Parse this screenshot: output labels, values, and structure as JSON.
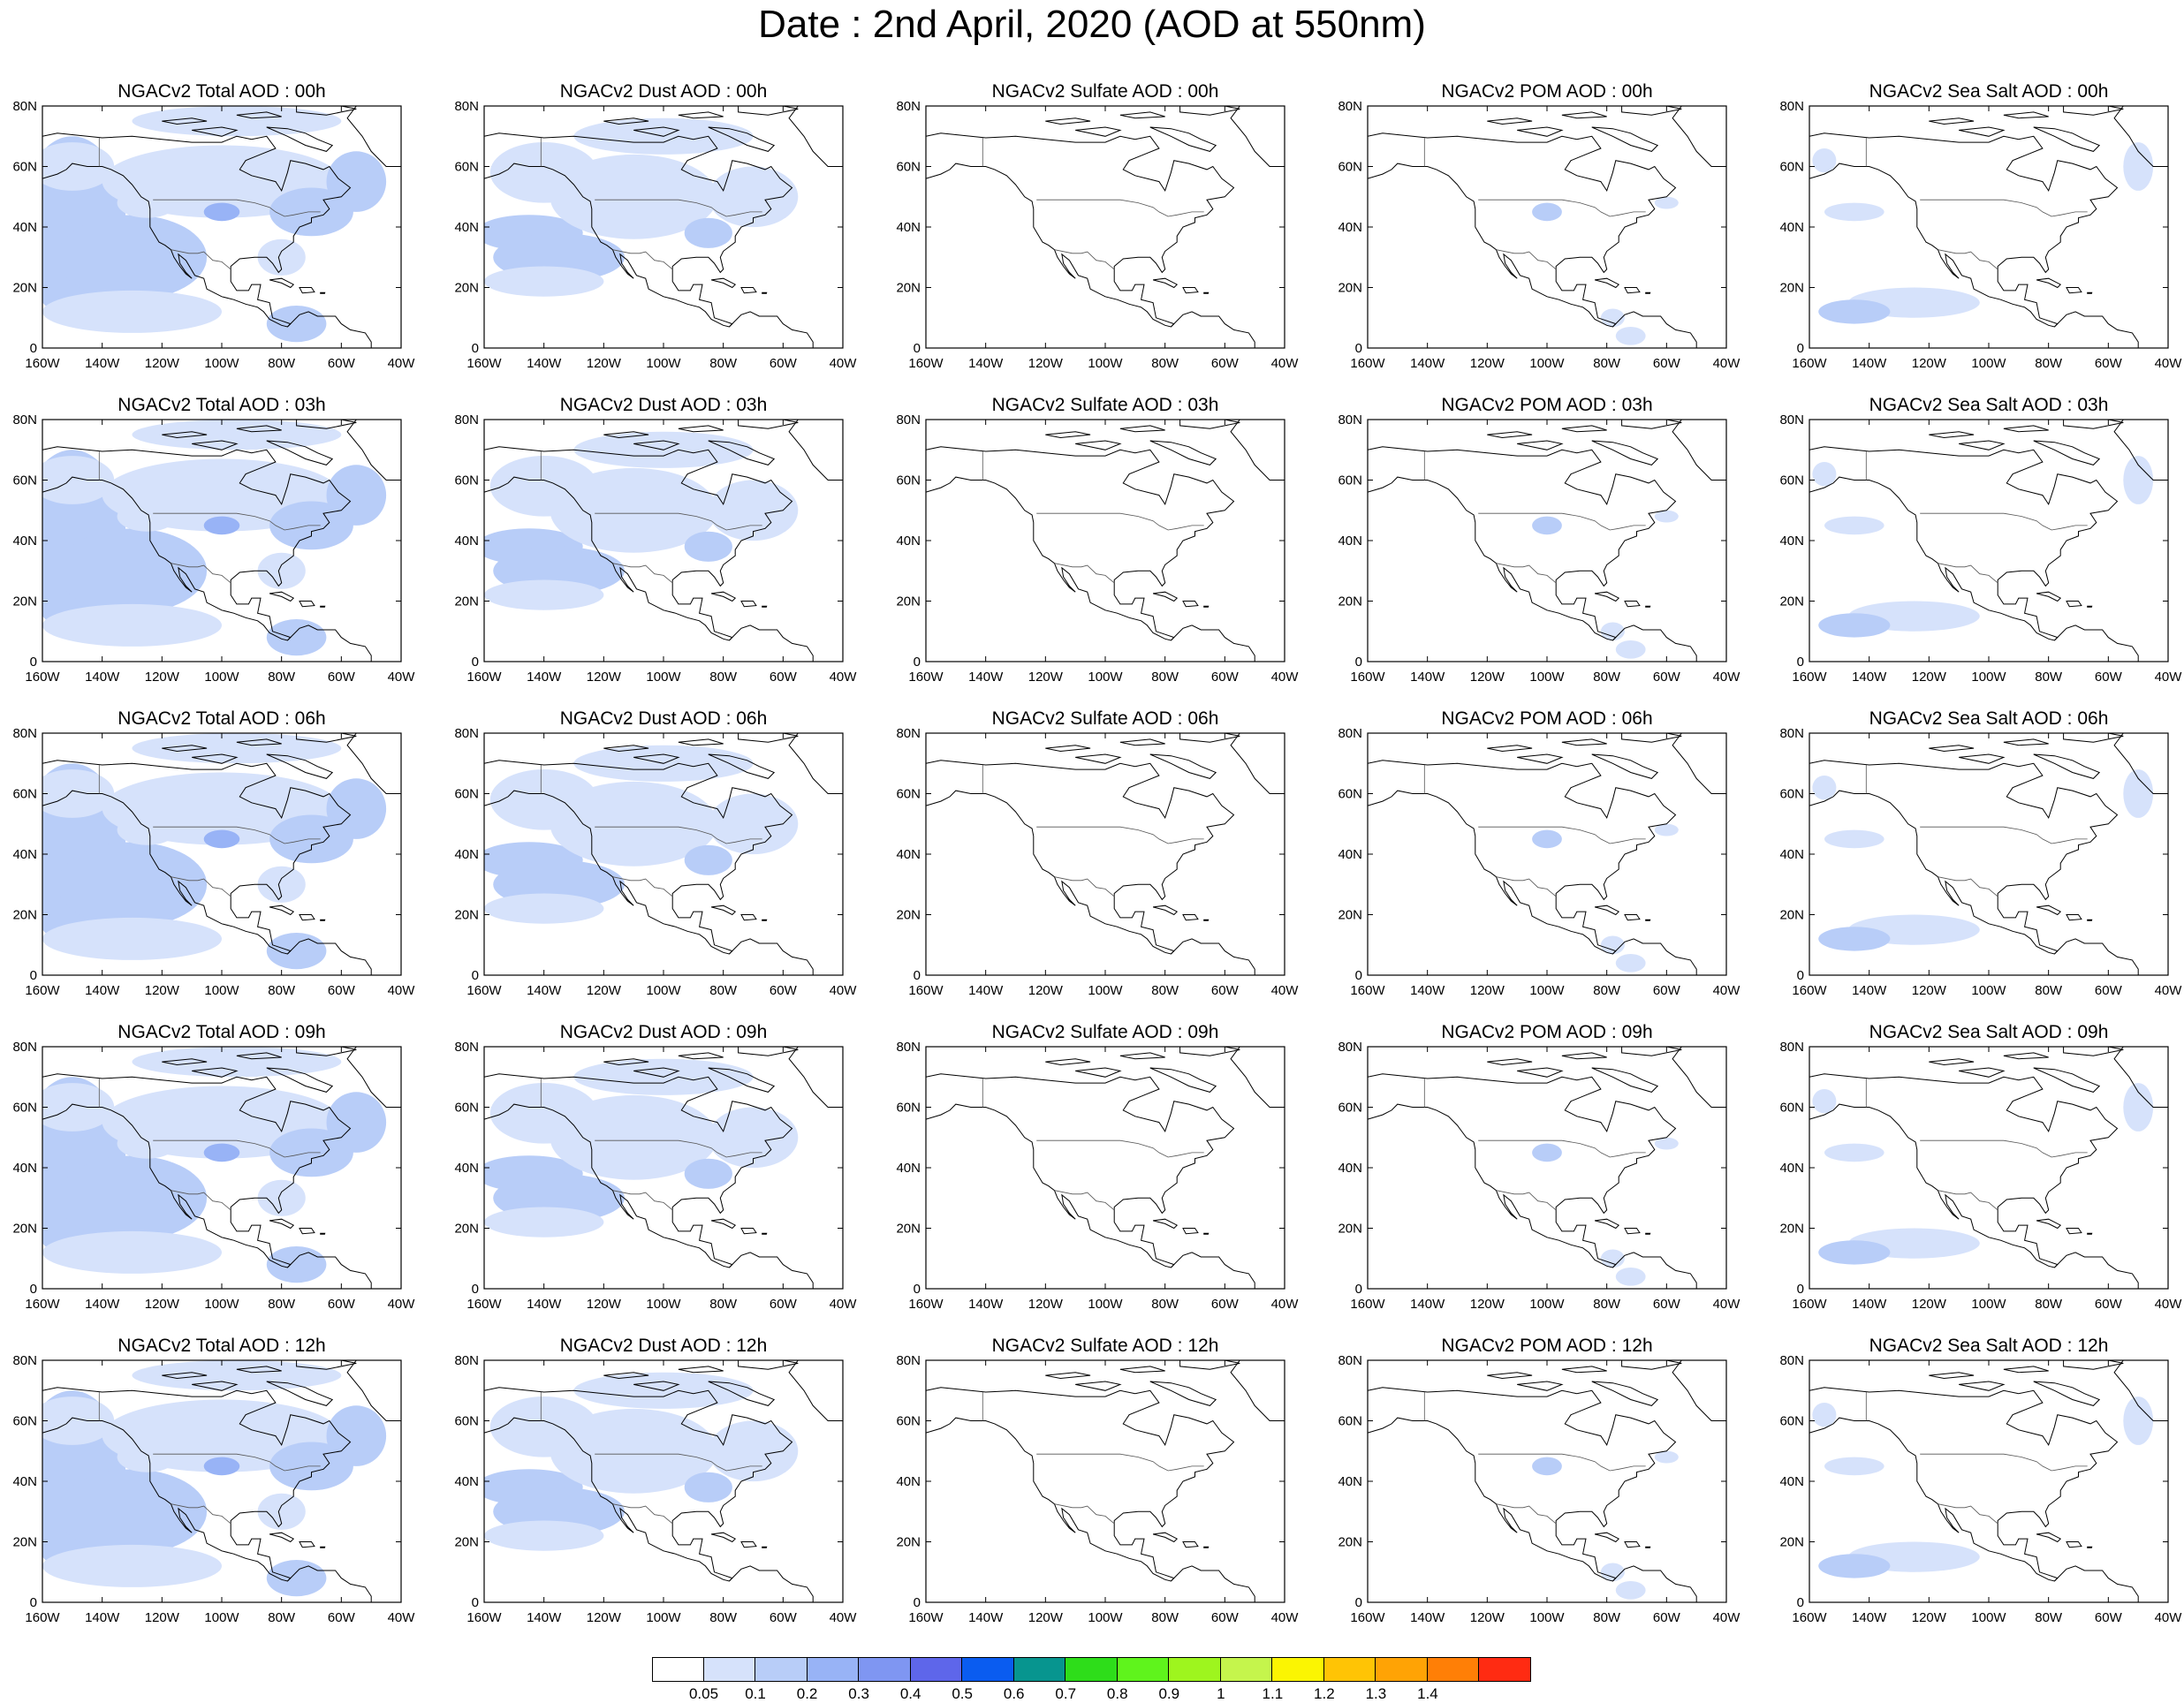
{
  "title": "Date : 2nd April, 2020 (AOD at 550nm)",
  "axes": {
    "lon_labels": [
      "160W",
      "140W",
      "120W",
      "100W",
      "80W",
      "60W",
      "40W"
    ],
    "lat_labels": [
      "0",
      "20N",
      "40N",
      "60N",
      "80N"
    ],
    "lon_range": [
      -160,
      -40
    ],
    "lat_range": [
      0,
      80
    ]
  },
  "panels": [
    {
      "title": "NGACv2 Total AOD : 00h",
      "species": "total",
      "hour": "00"
    },
    {
      "title": "NGACv2 Dust AOD : 00h",
      "species": "dust",
      "hour": "00"
    },
    {
      "title": "NGACv2 Sulfate AOD : 00h",
      "species": "sulfate",
      "hour": "00"
    },
    {
      "title": "NGACv2 POM AOD : 00h",
      "species": "pom",
      "hour": "00"
    },
    {
      "title": "NGACv2 Sea Salt AOD : 00h",
      "species": "seasalt",
      "hour": "00"
    },
    {
      "title": "NGACv2 Total AOD : 03h",
      "species": "total",
      "hour": "03"
    },
    {
      "title": "NGACv2 Dust AOD : 03h",
      "species": "dust",
      "hour": "03"
    },
    {
      "title": "NGACv2 Sulfate AOD : 03h",
      "species": "sulfate",
      "hour": "03"
    },
    {
      "title": "NGACv2 POM AOD : 03h",
      "species": "pom",
      "hour": "03"
    },
    {
      "title": "NGACv2 Sea Salt AOD : 03h",
      "species": "seasalt",
      "hour": "03"
    },
    {
      "title": "NGACv2 Total AOD : 06h",
      "species": "total",
      "hour": "06"
    },
    {
      "title": "NGACv2 Dust AOD : 06h",
      "species": "dust",
      "hour": "06"
    },
    {
      "title": "NGACv2 Sulfate AOD : 06h",
      "species": "sulfate",
      "hour": "06"
    },
    {
      "title": "NGACv2 POM AOD : 06h",
      "species": "pom",
      "hour": "06"
    },
    {
      "title": "NGACv2 Sea Salt AOD : 06h",
      "species": "seasalt",
      "hour": "06"
    },
    {
      "title": "NGACv2 Total AOD : 09h",
      "species": "total",
      "hour": "09"
    },
    {
      "title": "NGACv2 Dust AOD : 09h",
      "species": "dust",
      "hour": "09"
    },
    {
      "title": "NGACv2 Sulfate AOD : 09h",
      "species": "sulfate",
      "hour": "09"
    },
    {
      "title": "NGACv2 POM AOD : 09h",
      "species": "pom",
      "hour": "09"
    },
    {
      "title": "NGACv2 Sea Salt  AOD : 09h",
      "species": "seasalt",
      "hour": "09"
    },
    {
      "title": "NGACv2 Total AOD  : 12h",
      "species": "total",
      "hour": "12"
    },
    {
      "title": "NGACv2 Dust AOD : 12h",
      "species": "dust",
      "hour": "12"
    },
    {
      "title": "NGACv2 Sulfate AOD : 12h",
      "species": "sulfate",
      "hour": "12"
    },
    {
      "title": "NGACv2 POM  AOD : 12h",
      "species": "pom",
      "hour": "12"
    },
    {
      "title": "NGACv2 Sea Salt  AOD : 12h",
      "species": "seasalt",
      "hour": "12"
    }
  ],
  "colorbar": {
    "colors": [
      "#ffffff",
      "#d6e2fb",
      "#b8cdf8",
      "#98b3f6",
      "#7f96f2",
      "#5e66ea",
      "#0a5cf0",
      "#07958f",
      "#2edd1a",
      "#5ff41c",
      "#9ef51e",
      "#c5f54c",
      "#fbf502",
      "#ffc405",
      "#ffa305",
      "#ff7f06",
      "#ff2b12"
    ],
    "labels": [
      "0.05",
      "0.1",
      "0.2",
      "0.3",
      "0.4",
      "0.5",
      "0.6",
      "0.7",
      "0.8",
      "0.9",
      "1",
      "1.1",
      "1.2",
      "1.3",
      "1.4"
    ]
  }
}
